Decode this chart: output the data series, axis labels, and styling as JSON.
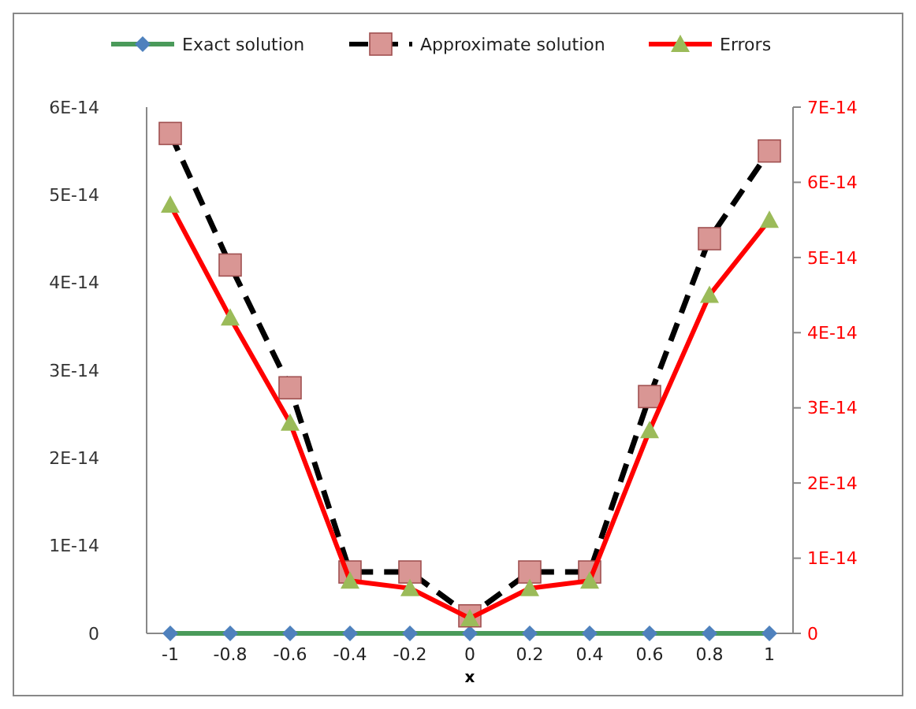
{
  "chart_data": {
    "type": "line",
    "xlabel": "x",
    "categories": [
      "-1",
      "-0.8",
      "-0.6",
      "-0.4",
      "-0.2",
      "0",
      "0.2",
      "0.4",
      "0.6",
      "0.8",
      "1"
    ],
    "series": [
      {
        "name": "Exact solution",
        "color": "#4a9a5a",
        "colors": [
          "#4f81bd",
          "#4f81bd",
          "#4f81bd",
          "#4f81bd",
          "#4f81bd",
          "#4f81bd",
          "#4f81bd",
          "#4f81bd",
          "#4f81bd",
          "#4f81bd",
          "#4f81bd"
        ],
        "marker": "diamond",
        "line_style": "solid",
        "values": [
          0,
          0,
          0,
          0,
          0,
          0,
          0,
          0,
          0,
          0,
          0
        ]
      },
      {
        "name": "Approximate solution",
        "color": "#000000",
        "colors": [
          "#d99694",
          "#d99694",
          "#d99694",
          "#d99694",
          "#d99694",
          "#d99694",
          "#d99694",
          "#d99694",
          "#d99694",
          "#d99694",
          "#d99694"
        ],
        "marker": "square",
        "line_style": "dashed",
        "values": [
          5.7e-14,
          4.2e-14,
          2.8e-14,
          7e-15,
          7e-15,
          2e-15,
          7e-15,
          7e-15,
          2.7e-14,
          4.5e-14,
          5.5e-14
        ]
      },
      {
        "name": "Errors",
        "color": "#ff0000",
        "colors": [
          "#9bbb59",
          "#9bbb59",
          "#9bbb59",
          "#9bbb59",
          "#9bbb59",
          "#9bbb59",
          "#9bbb59",
          "#9bbb59",
          "#9bbb59",
          "#9bbb59",
          "#9bbb59"
        ],
        "marker": "triangle",
        "line_style": "solid",
        "axis": "y2",
        "values": [
          5.7e-14,
          4.2e-14,
          2.8e-14,
          7e-15,
          6e-15,
          2e-15,
          6e-15,
          7e-15,
          2.7e-14,
          4.5e-14,
          5.5e-14
        ]
      }
    ],
    "ylim": [
      0,
      6e-14
    ],
    "yticks": [
      {
        "value": 0,
        "label": "0"
      },
      {
        "value": 1e-14,
        "label": "1E-14"
      },
      {
        "value": 2e-14,
        "label": "2E-14"
      },
      {
        "value": 3e-14,
        "label": "3E-14"
      },
      {
        "value": 4e-14,
        "label": "4E-14"
      },
      {
        "value": 5e-14,
        "label": "5E-14"
      },
      {
        "value": 6e-14,
        "label": "6E-14"
      }
    ],
    "y2lim": [
      0,
      7e-14
    ],
    "y2ticks": [
      {
        "value": 0,
        "label": "0"
      },
      {
        "value": 1e-14,
        "label": "1E-14"
      },
      {
        "value": 2e-14,
        "label": "2E-14"
      },
      {
        "value": 3e-14,
        "label": "3E-14"
      },
      {
        "value": 4e-14,
        "label": "4E-14"
      },
      {
        "value": 5e-14,
        "label": "5E-14"
      },
      {
        "value": 6e-14,
        "label": "6E-14"
      },
      {
        "value": 7e-14,
        "label": "7E-14"
      }
    ],
    "legend": "top",
    "grid": false
  }
}
